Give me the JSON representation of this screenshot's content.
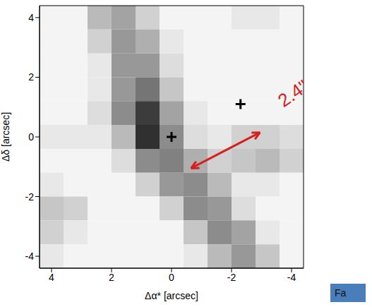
{
  "chart_data": {
    "type": "heatmap",
    "xlabel": "Δα* [arcsec]",
    "ylabel": "Δδ [arcsec]",
    "xlim": [
      4.4,
      -4.4
    ],
    "ylim": [
      -4.4,
      4.4
    ],
    "xticks": [
      4,
      2,
      0,
      -2,
      -4
    ],
    "yticks": [
      -4,
      -2,
      0,
      2,
      4
    ],
    "heatmap": {
      "x_bins": [
        4.4,
        3.6,
        2.8,
        2.0,
        1.2,
        0.4,
        -0.4,
        -1.2,
        -2.0,
        -2.8,
        -3.6,
        -4.4
      ],
      "y_bins": [
        4.4,
        3.6,
        2.8,
        2.0,
        1.2,
        0.4,
        -0.4,
        -1.2,
        -2.0,
        -2.8,
        -3.6,
        -4.4
      ],
      "zlim": [
        0,
        1
      ],
      "cells": [
        [
          0.05,
          0.05,
          0.3,
          0.4,
          0.2,
          0.05,
          0.05,
          0.05,
          0.1,
          0.1,
          0.05
        ],
        [
          0.05,
          0.05,
          0.2,
          0.45,
          0.35,
          0.1,
          0.05,
          0.05,
          0.05,
          0.05,
          0.05
        ],
        [
          0.05,
          0.05,
          0.1,
          0.45,
          0.45,
          0.15,
          0.05,
          0.05,
          0.05,
          0.05,
          0.05
        ],
        [
          0.05,
          0.05,
          0.1,
          0.45,
          0.6,
          0.25,
          0.05,
          0.05,
          0.05,
          0.05,
          0.05
        ],
        [
          0.05,
          0.05,
          0.15,
          0.5,
          0.85,
          0.4,
          0.1,
          0.05,
          0.05,
          0.05,
          0.05
        ],
        [
          0.1,
          0.1,
          0.1,
          0.3,
          0.9,
          0.5,
          0.15,
          0.1,
          0.2,
          0.2,
          0.15
        ],
        [
          0.05,
          0.05,
          0.05,
          0.15,
          0.5,
          0.55,
          0.35,
          0.2,
          0.25,
          0.3,
          0.2
        ],
        [
          0.1,
          0.05,
          0.05,
          0.05,
          0.2,
          0.45,
          0.5,
          0.3,
          0.1,
          0.1,
          0.05
        ],
        [
          0.25,
          0.2,
          0.05,
          0.05,
          0.05,
          0.2,
          0.5,
          0.45,
          0.15,
          0.05,
          0.05
        ],
        [
          0.2,
          0.1,
          0.05,
          0.05,
          0.05,
          0.05,
          0.25,
          0.5,
          0.4,
          0.1,
          0.05
        ],
        [
          0.1,
          0.05,
          0.05,
          0.05,
          0.05,
          0.05,
          0.1,
          0.3,
          0.45,
          0.25,
          0.05
        ]
      ]
    },
    "series": [
      {
        "type": "scatter",
        "marker": "cross",
        "color": "#000000",
        "x": [
          0,
          -2.3
        ],
        "y": [
          0,
          1.1
        ]
      }
    ],
    "annotations": [
      {
        "type": "arrow",
        "color": "#d62020",
        "from": [
          -0.65,
          -1.05
        ],
        "to": [
          -2.95,
          0.15
        ],
        "label": "2.4\""
      },
      {
        "type": "box",
        "color": "#4a7ebb",
        "label": "Fa"
      }
    ]
  }
}
